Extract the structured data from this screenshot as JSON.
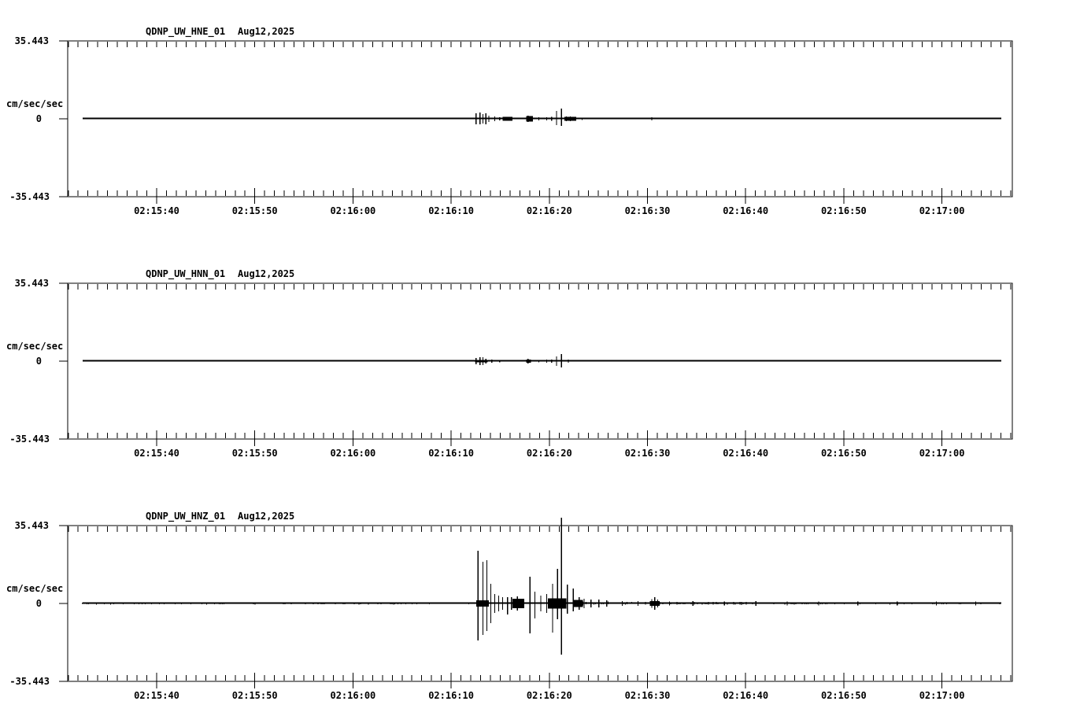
{
  "page": {
    "background": "#ffffff",
    "stroke_color": "#000000"
  },
  "chart_data": {
    "type": "line",
    "subtype": "seismogram-3-panel",
    "grid": "off",
    "legend": "none",
    "date_label": "Aug12,2025",
    "units_label": "cm/sec/sec",
    "y_axis": {
      "max": 35.443,
      "min": -35.443,
      "max_label": "35.443",
      "zero_label": "0",
      "min_label": "-35.443"
    },
    "x_axis": {
      "tick_labels": [
        "02:15:40",
        "02:15:50",
        "02:16:00",
        "02:16:10",
        "02:16:20",
        "02:16:30",
        "02:16:40",
        "02:16:50",
        "02:17:00"
      ],
      "major_interval_s": 10,
      "minor_interval_s": 1,
      "lead_before_first_label_s": 9.06,
      "span_s": 96.2
    },
    "panels": [
      {
        "station": "QDNP_UW_HNE_01",
        "date": "Aug12,2025",
        "channel": "HNE",
        "spikes": [
          [
            41.6,
            2.5,
            2.5
          ],
          [
            42.0,
            2.9,
            2.5
          ],
          [
            42.3,
            2.1,
            2.1
          ],
          [
            42.6,
            2.5,
            2.5
          ],
          [
            42.9,
            1.4,
            1.4
          ],
          [
            43.5,
            1.1,
            1.1
          ],
          [
            44.0,
            0.7,
            0.7
          ],
          [
            44.6,
            0.9,
            0.9
          ],
          [
            45.1,
            0.9,
            0.9
          ],
          [
            46.9,
            1.4,
            1.4
          ],
          [
            48.0,
            0.7,
            0.7
          ],
          [
            48.8,
            0.7,
            0.7
          ],
          [
            49.3,
            0.9,
            0.9
          ],
          [
            49.8,
            3.6,
            2.9
          ],
          [
            50.3,
            4.7,
            3.2
          ],
          [
            50.8,
            1.1,
            1.1
          ],
          [
            51.2,
            1.1,
            1.1
          ],
          [
            51.7,
            0.7,
            0.7
          ],
          [
            52.4,
            0.5,
            0.5
          ],
          [
            59.5,
            0.7,
            0.7
          ]
        ],
        "blobs": [
          [
            44.3,
            45.3,
            0.9
          ],
          [
            46.7,
            47.4,
            1.3
          ],
          [
            50.6,
            51.8,
            0.9
          ]
        ],
        "noise_zones": []
      },
      {
        "station": "QDNP_UW_HNN_01",
        "date": "Aug12,2025",
        "channel": "HNN",
        "spikes": [
          [
            41.6,
            1.4,
            1.4
          ],
          [
            42.0,
            1.8,
            1.8
          ],
          [
            42.3,
            1.8,
            1.8
          ],
          [
            42.6,
            1.1,
            1.1
          ],
          [
            43.2,
            0.7,
            0.7
          ],
          [
            44.0,
            0.5,
            0.5
          ],
          [
            46.9,
            1.1,
            1.1
          ],
          [
            48.0,
            0.5,
            0.5
          ],
          [
            48.8,
            0.7,
            0.7
          ],
          [
            49.3,
            0.7,
            0.7
          ],
          [
            49.8,
            2.1,
            2.1
          ],
          [
            50.3,
            3.2,
            2.9
          ],
          [
            51.0,
            0.7,
            0.7
          ]
        ],
        "blobs": [
          [
            41.5,
            42.8,
            0.6
          ],
          [
            46.7,
            47.2,
            0.8
          ]
        ],
        "noise_zones": []
      },
      {
        "station": "QDNP_UW_HNZ_01",
        "date": "Aug12,2025",
        "channel": "HNZ",
        "spikes": [
          [
            41.8,
            24.0,
            16.8
          ],
          [
            42.3,
            19.0,
            14.3
          ],
          [
            42.7,
            19.7,
            12.5
          ],
          [
            43.1,
            9.0,
            9.0
          ],
          [
            43.5,
            4.3,
            4.3
          ],
          [
            43.9,
            3.6,
            3.6
          ],
          [
            44.3,
            2.9,
            2.9
          ],
          [
            44.8,
            2.9,
            5.0
          ],
          [
            45.2,
            2.9,
            2.9
          ],
          [
            45.8,
            3.2,
            3.2
          ],
          [
            46.3,
            2.1,
            2.1
          ],
          [
            47.1,
            12.2,
            13.6
          ],
          [
            47.6,
            5.4,
            6.8
          ],
          [
            48.2,
            3.6,
            3.6
          ],
          [
            48.8,
            4.3,
            4.3
          ],
          [
            49.4,
            9.0,
            13.2
          ],
          [
            49.9,
            15.7,
            7.2
          ],
          [
            50.3,
            39.0,
            23.3
          ],
          [
            50.9,
            8.6,
            4.7
          ],
          [
            51.5,
            6.8,
            3.6
          ],
          [
            52.1,
            2.9,
            2.9
          ],
          [
            52.6,
            2.1,
            2.1
          ],
          [
            53.3,
            1.8,
            1.8
          ],
          [
            54.1,
            1.8,
            1.8
          ],
          [
            54.9,
            1.4,
            1.4
          ],
          [
            56.5,
            1.1,
            1.1
          ],
          [
            58.1,
            1.1,
            1.1
          ],
          [
            59.5,
            2.0,
            2.0
          ],
          [
            59.8,
            2.9,
            2.9
          ],
          [
            60.1,
            1.8,
            1.8
          ],
          [
            61.3,
            0.9,
            0.9
          ],
          [
            63.7,
            1.1,
            1.1
          ],
          [
            66.9,
            0.9,
            0.9
          ],
          [
            70.1,
            1.1,
            1.1
          ],
          [
            73.3,
            0.9,
            0.9
          ],
          [
            76.5,
            0.9,
            0.9
          ],
          [
            80.5,
            0.9,
            0.9
          ],
          [
            84.5,
            0.9,
            0.9
          ],
          [
            88.5,
            0.9,
            0.9
          ],
          [
            92.5,
            0.9,
            0.9
          ]
        ],
        "blobs": [
          [
            41.6,
            42.9,
            1.5
          ],
          [
            45.3,
            46.5,
            2.2
          ],
          [
            48.9,
            50.8,
            2.4
          ],
          [
            51.5,
            52.5,
            1.6
          ],
          [
            59.3,
            60.3,
            1.0
          ]
        ],
        "noise_zones": [
          [
            1.5,
            41.3,
            0.55
          ],
          [
            52.5,
            56.0,
            1.0
          ],
          [
            56.0,
            70.0,
            0.8
          ],
          [
            70.0,
            95.1,
            0.55
          ]
        ]
      }
    ]
  }
}
